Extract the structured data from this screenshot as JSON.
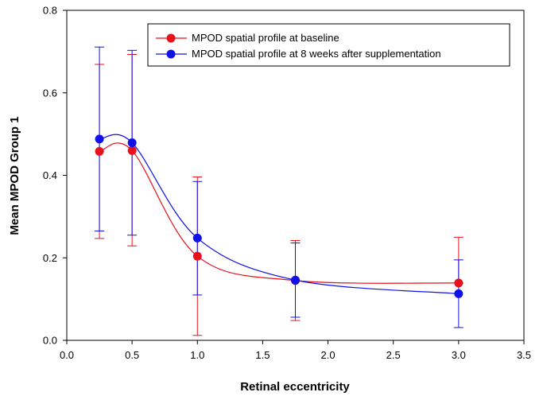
{
  "chart_data": {
    "type": "line",
    "title": "",
    "xlabel": "Retinal eccentricity",
    "ylabel": "Mean MPOD Group 1",
    "xlim": [
      0.0,
      3.5
    ],
    "ylim": [
      0.0,
      0.8
    ],
    "xticks": [
      "0.0",
      "0.5",
      "1.0",
      "1.5",
      "2.0",
      "2.5",
      "3.0",
      "3.5"
    ],
    "yticks": [
      "0.0",
      "0.2",
      "0.4",
      "0.6",
      "0.8"
    ],
    "grid": false,
    "legend_position": "top-right",
    "series": [
      {
        "name": "MPOD spatial profile at baseline",
        "color": "#e8101a",
        "x": [
          0.25,
          0.5,
          1.0,
          1.75,
          3.0
        ],
        "y": [
          0.458,
          0.46,
          0.204,
          0.145,
          0.139
        ],
        "error_low": [
          0.247,
          0.229,
          0.012,
          0.048,
          0.139
        ],
        "error_high": [
          0.669,
          0.693,
          0.396,
          0.242,
          0.25
        ]
      },
      {
        "name": "MPOD spatial profile at 8 weeks after supplementation",
        "color": "#1010e8",
        "x": [
          0.25,
          0.5,
          1.0,
          1.75,
          3.0
        ],
        "y": [
          0.488,
          0.479,
          0.248,
          0.146,
          0.113
        ],
        "error_low": [
          0.265,
          0.255,
          0.11,
          0.056,
          0.031
        ],
        "error_high": [
          0.711,
          0.703,
          0.385,
          0.236,
          0.195
        ]
      }
    ]
  }
}
